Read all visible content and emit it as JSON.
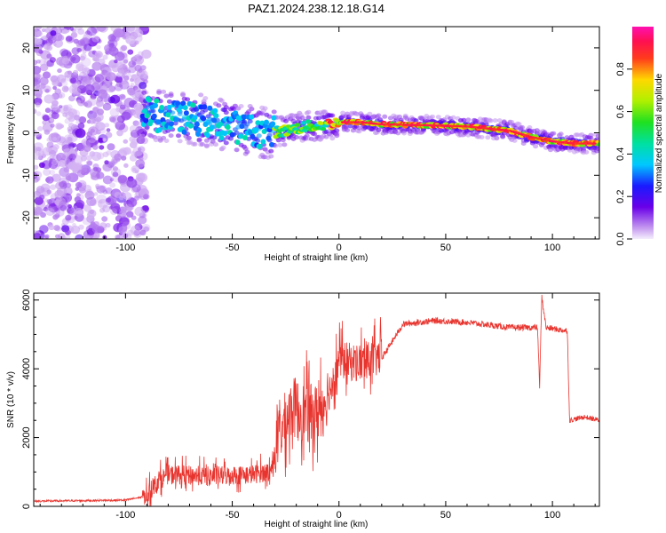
{
  "title": "PAZ1.2024.238.12.18.G14",
  "chart_data": [
    {
      "type": "heatmap",
      "xlabel": "Height of straight line (km)",
      "ylabel": "Frequency (Hz)",
      "xlim": [
        -143,
        122
      ],
      "ylim": [
        -25,
        25
      ],
      "xticks": [
        -100,
        -50,
        0,
        50,
        100
      ],
      "yticks": [
        -20,
        -10,
        0,
        10,
        20
      ],
      "colorbar": {
        "label": "Normalized spectral amplitude",
        "range": [
          0,
          1
        ],
        "ticks": [
          "0.0",
          "0.2",
          "0.4",
          "0.6",
          "0.8"
        ],
        "tick_values": [
          0.0,
          0.2,
          0.4,
          0.6,
          0.8
        ]
      },
      "ridge": [
        {
          "x": -95,
          "y": 5.5
        },
        {
          "x": -85,
          "y": 4
        },
        {
          "x": -70,
          "y": 3.5
        },
        {
          "x": -55,
          "y": 2
        },
        {
          "x": -45,
          "y": 1
        },
        {
          "x": -35,
          "y": 0
        },
        {
          "x": -25,
          "y": 0.5
        },
        {
          "x": -15,
          "y": 1.5
        },
        {
          "x": -5,
          "y": 2
        },
        {
          "x": 0,
          "y": 2.5
        },
        {
          "x": 10,
          "y": 2.5
        },
        {
          "x": 20,
          "y": 2
        },
        {
          "x": 40,
          "y": 1.8
        },
        {
          "x": 60,
          "y": 1.5
        },
        {
          "x": 70,
          "y": 1
        },
        {
          "x": 80,
          "y": 0.5
        },
        {
          "x": 90,
          "y": -1
        },
        {
          "x": 100,
          "y": -2
        },
        {
          "x": 110,
          "y": -2.5
        },
        {
          "x": 122,
          "y": -2.5
        }
      ]
    },
    {
      "type": "line",
      "xlabel": "Height of straight line (km)",
      "ylabel": "SNR (10 * v/v)",
      "xlim": [
        -143,
        122
      ],
      "ylim": [
        0,
        6200
      ],
      "xticks": [
        -100,
        -50,
        0,
        50,
        100
      ],
      "yticks": [
        0,
        2000,
        4000,
        6000
      ],
      "color": "#e8342e",
      "envelope": [
        {
          "x": -143,
          "y": 150
        },
        {
          "x": -100,
          "y": 180
        },
        {
          "x": -90,
          "y": 300
        },
        {
          "x": -85,
          "y": 700
        },
        {
          "x": -80,
          "y": 900
        },
        {
          "x": -60,
          "y": 850
        },
        {
          "x": -40,
          "y": 900
        },
        {
          "x": -32,
          "y": 1000
        },
        {
          "x": -28,
          "y": 2000
        },
        {
          "x": -22,
          "y": 2800
        },
        {
          "x": -15,
          "y": 2600
        },
        {
          "x": -10,
          "y": 2600
        },
        {
          "x": -5,
          "y": 3200
        },
        {
          "x": 0,
          "y": 4200
        },
        {
          "x": 10,
          "y": 4100
        },
        {
          "x": 20,
          "y": 4300
        },
        {
          "x": 30,
          "y": 5300
        },
        {
          "x": 45,
          "y": 5400
        },
        {
          "x": 60,
          "y": 5350
        },
        {
          "x": 80,
          "y": 5200
        },
        {
          "x": 93,
          "y": 5200
        },
        {
          "x": 94,
          "y": 3500
        },
        {
          "x": 95,
          "y": 6100
        },
        {
          "x": 97,
          "y": 5200
        },
        {
          "x": 107,
          "y": 5100
        },
        {
          "x": 108,
          "y": 2500
        },
        {
          "x": 115,
          "y": 2600
        },
        {
          "x": 122,
          "y": 2500
        }
      ]
    }
  ]
}
